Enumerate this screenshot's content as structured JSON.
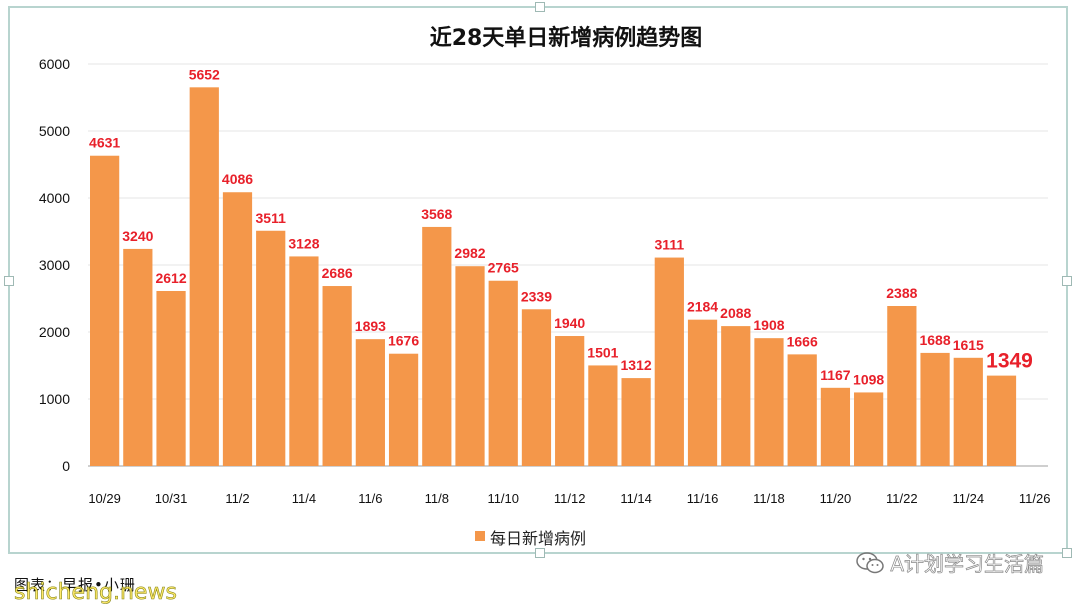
{
  "chart_data": {
    "type": "bar",
    "title": "近28天单日新增病例趋势图",
    "categories": [
      "10/29",
      "10/30",
      "10/31",
      "11/1",
      "11/2",
      "11/3",
      "11/4",
      "11/5",
      "11/6",
      "11/7",
      "11/8",
      "11/9",
      "11/10",
      "11/11",
      "11/12",
      "11/13",
      "11/14",
      "11/15",
      "11/16",
      "11/17",
      "11/18",
      "11/19",
      "11/20",
      "11/21",
      "11/22",
      "11/23",
      "11/24",
      "11/25",
      "11/26"
    ],
    "values": [
      4631,
      3240,
      2612,
      5652,
      4086,
      3511,
      3128,
      2686,
      1893,
      1676,
      3568,
      2982,
      2765,
      2339,
      1940,
      1501,
      1312,
      3111,
      2184,
      2088,
      1908,
      1666,
      1167,
      1098,
      2388,
      1688,
      1615,
      1349,
      null
    ],
    "x_tick_labels": [
      "10/29",
      "10/31",
      "11/2",
      "11/4",
      "11/6",
      "11/8",
      "11/10",
      "11/12",
      "11/14",
      "11/16",
      "11/18",
      "11/20",
      "11/22",
      "11/24",
      "11/26"
    ],
    "y_ticks": [
      0,
      1000,
      2000,
      3000,
      4000,
      5000,
      6000
    ],
    "ylim": [
      0,
      6000
    ],
    "series": [
      {
        "name": "每日新增病例"
      }
    ],
    "highlight_last": true,
    "grid": true,
    "legend_position": "bottom",
    "colors": {
      "bar": "#f4974a",
      "label": "#e8202a",
      "grid": "#e6e6e6",
      "axis": "#bfbfbf"
    }
  },
  "footer": {
    "credit": "图表：早报•小珊",
    "source_watermark": "shicheng.news",
    "wechat_account": "A计划学习生活篇",
    "wechat_icon": "wechat-icon"
  }
}
